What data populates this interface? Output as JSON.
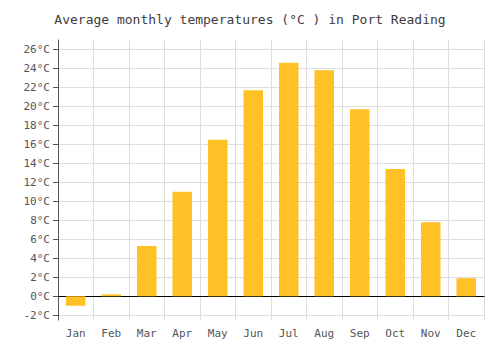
{
  "chart_data": {
    "type": "bar",
    "title": "Average monthly temperatures (°C ) in Port Reading",
    "categories": [
      "Jan",
      "Feb",
      "Mar",
      "Apr",
      "May",
      "Jun",
      "Jul",
      "Aug",
      "Sep",
      "Oct",
      "Nov",
      "Dec"
    ],
    "values": [
      -1.0,
      0.2,
      5.3,
      11.0,
      16.5,
      21.7,
      24.6,
      23.8,
      19.7,
      13.4,
      7.8,
      1.9
    ],
    "color": "#FFC125",
    "ylim": [
      -2.5,
      27
    ],
    "yticks": [
      {
        "value": -2,
        "label": "-2°C"
      },
      {
        "value": 0,
        "label": "0°C"
      },
      {
        "value": 2,
        "label": "2°C"
      },
      {
        "value": 4,
        "label": "4°C"
      },
      {
        "value": 6,
        "label": "6°C"
      },
      {
        "value": 8,
        "label": "8°C"
      },
      {
        "value": 10,
        "label": "10°C"
      },
      {
        "value": 12,
        "label": "12°C"
      },
      {
        "value": 14,
        "label": "14°C"
      },
      {
        "value": 16,
        "label": "16°C"
      },
      {
        "value": 18,
        "label": "18°C"
      },
      {
        "value": 20,
        "label": "20°C"
      },
      {
        "value": 22,
        "label": "22°C"
      },
      {
        "value": 24,
        "label": "24°C"
      },
      {
        "value": 26,
        "label": "26°C"
      }
    ],
    "grid": true
  }
}
